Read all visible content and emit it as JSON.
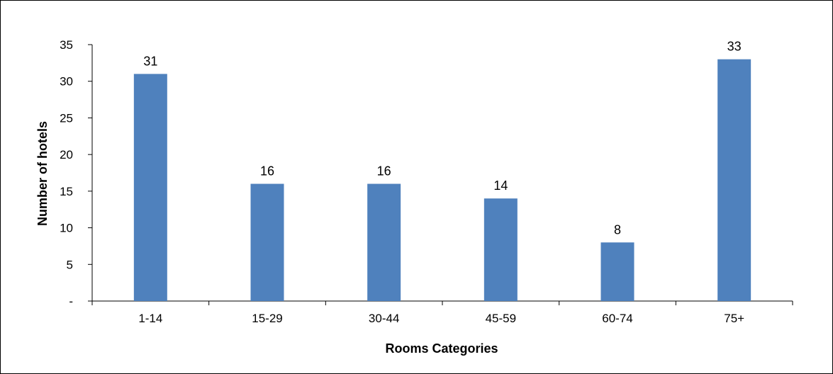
{
  "chart_data": {
    "type": "bar",
    "categories": [
      "1-14",
      "15-29",
      "30-44",
      "45-59",
      "60-74",
      "75+"
    ],
    "values": [
      31,
      16,
      16,
      14,
      8,
      33
    ],
    "xlabel": "Rooms Categories",
    "ylabel": "Number of hotels",
    "ylim": [
      0,
      35
    ],
    "yticks": [
      "-",
      "5",
      "10",
      "15",
      "20",
      "25",
      "30",
      "35"
    ],
    "bar_color": "#4F81BD",
    "grid": false,
    "legend": "none"
  }
}
